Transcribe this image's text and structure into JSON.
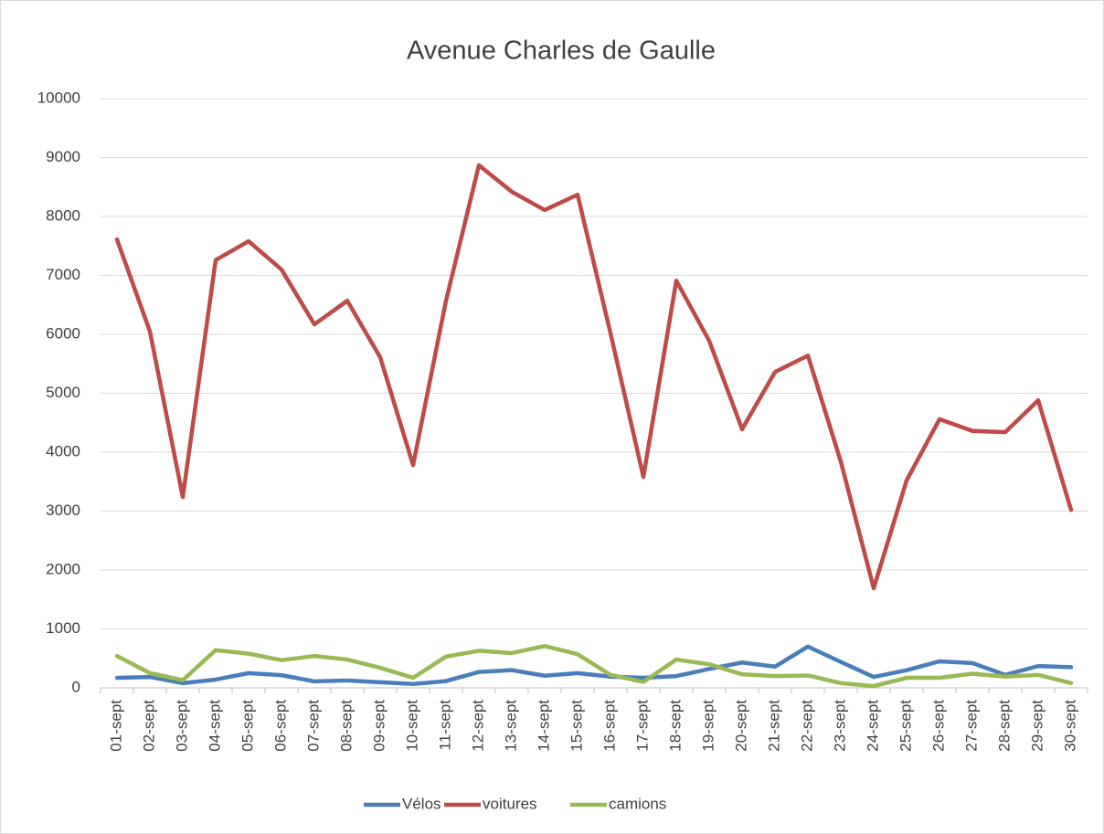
{
  "chart_data": {
    "type": "line",
    "title": "Avenue Charles de Gaulle",
    "categories": [
      "01-sept",
      "02-sept",
      "03-sept",
      "04-sept",
      "05-sept",
      "06-sept",
      "07-sept",
      "08-sept",
      "09-sept",
      "10-sept",
      "11-sept",
      "12-sept",
      "13-sept",
      "14-sept",
      "15-sept",
      "16-sept",
      "17-sept",
      "18-sept",
      "19-sept",
      "20-sept",
      "21-sept",
      "22-sept",
      "23-sept",
      "24-sept",
      "25-sept",
      "26-sept",
      "27-sept",
      "28-sept",
      "29-sept",
      "30-sept"
    ],
    "series": [
      {
        "name": "Vélos",
        "color": "#4a7ebb",
        "values": [
          170,
          185,
          80,
          140,
          250,
          215,
          110,
          125,
          95,
          65,
          115,
          270,
          300,
          205,
          250,
          190,
          170,
          200,
          320,
          430,
          360,
          700,
          440,
          185,
          300,
          450,
          420,
          220,
          370,
          350
        ]
      },
      {
        "name": "voitures",
        "color": "#be4b48",
        "values": [
          7610,
          6050,
          3240,
          7260,
          7580,
          7100,
          6170,
          6570,
          5610,
          3780,
          6570,
          8870,
          8420,
          8110,
          8370,
          6020,
          3580,
          6910,
          5890,
          4390,
          5360,
          5640,
          3840,
          1690,
          3520,
          4560,
          4360,
          4340,
          4880,
          3020
        ]
      },
      {
        "name": "camions",
        "color": "#98b954",
        "values": [
          540,
          250,
          130,
          640,
          580,
          470,
          540,
          480,
          340,
          170,
          530,
          630,
          590,
          710,
          570,
          220,
          100,
          480,
          400,
          230,
          200,
          210,
          80,
          30,
          170,
          170,
          240,
          190,
          220,
          80
        ]
      }
    ],
    "ylim": [
      0,
      10000
    ],
    "yticks": [
      0,
      1000,
      2000,
      3000,
      4000,
      5000,
      6000,
      7000,
      8000,
      9000,
      10000
    ],
    "grid": true,
    "legend": "bottom"
  }
}
